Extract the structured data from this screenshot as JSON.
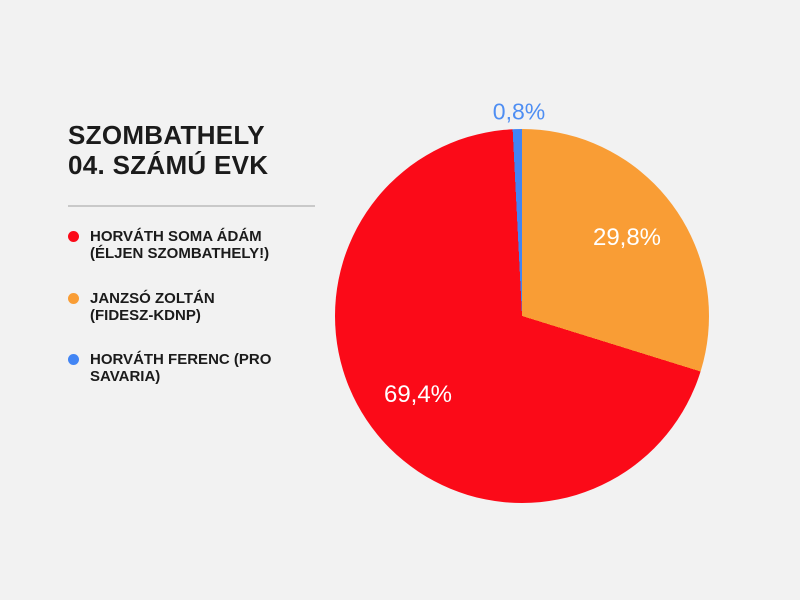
{
  "background_color": "#f2f2f2",
  "title": {
    "line1": "SZOMBATHELY",
    "line2": "04. SZÁMÚ EVK"
  },
  "legend": {
    "position": "left",
    "items": [
      {
        "lines": [
          "HORVÁTH SOMA ÁDÁM",
          "(ÉLJEN SZOMBATHELY!)"
        ]
      },
      {
        "lines": [
          "JANZSÓ ZOLTÁN",
          "(FIDESZ-KDNP)"
        ]
      },
      {
        "lines": [
          "HORVÁTH FERENC (PRO",
          "SAVARIA)"
        ]
      }
    ]
  },
  "chart_data": {
    "type": "pie",
    "title": "SZOMBATHELY 04. SZÁMÚ EVK",
    "series": [
      {
        "name": "HORVÁTH SOMA ÁDÁM (ÉLJEN SZOMBATHELY!)",
        "value": 69.4,
        "label": "69,4%",
        "color": "#fb0a18",
        "label_color": "#ffffff"
      },
      {
        "name": "JANZSÓ ZOLTÁN (FIDESZ-KDNP)",
        "value": 29.8,
        "label": "29,8%",
        "color": "#f99d35",
        "label_color": "#ffffff"
      },
      {
        "name": "HORVÁTH FERENC (PRO SAVARIA)",
        "value": 0.8,
        "label": "0,8%",
        "color": "#4285f4",
        "label_color": "#4e8ef3"
      }
    ],
    "display_order": [
      1,
      0,
      2
    ],
    "rotation": "first displayed slice starts at 12 o'clock, clockwise; blue sliver ends at top",
    "values_unit": "percent",
    "labels_format": "comma decimal separator",
    "legend_position": "left",
    "grid": false
  }
}
